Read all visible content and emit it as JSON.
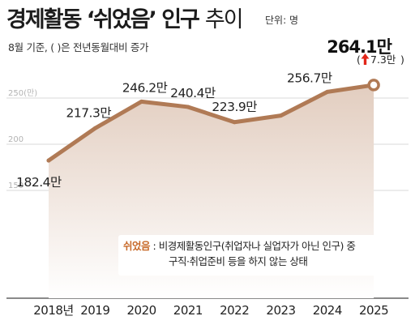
{
  "title": {
    "main": "경제활동 ‘쉬었음’ 인구",
    "trend": "추이",
    "unit": "단위: 명",
    "subtitle": "8월 기준, ( )은 전년동월대비 증가"
  },
  "note": {
    "term": "쉬었음",
    "separator": ":",
    "line1": "비경제활동인구(취업자나 실업자가 아닌 인구) 중",
    "line2": "구직·취업준비 등을 하지 않는 상태"
  },
  "colors": {
    "line": "#b07a55",
    "area_top": "#e2cdbf",
    "area_bottom": "#ffffff",
    "marker_fill": "#ffffff",
    "grid": "#d9d9d9",
    "arrow": "#e2261a"
  },
  "chart_data": {
    "type": "line",
    "categories": [
      "2018년",
      "2019",
      "2020",
      "2021",
      "2022",
      "2023",
      "2024",
      "2025"
    ],
    "series": [
      {
        "values": [
          182.4,
          217.3,
          246.2,
          240.4,
          223.9,
          231.0,
          256.7,
          264.1
        ]
      }
    ],
    "value_labels": [
      "182.4만",
      "217.3만",
      "246.2만",
      "240.4만",
      "223.9만",
      "",
      "256.7만",
      "264.1만"
    ],
    "last_change_label": "7.3만",
    "gridlines": [
      250,
      200,
      150
    ],
    "gridline_labels": [
      "250(만)",
      "200",
      "150"
    ],
    "ylim": [
      150,
      270
    ],
    "grid": true
  }
}
